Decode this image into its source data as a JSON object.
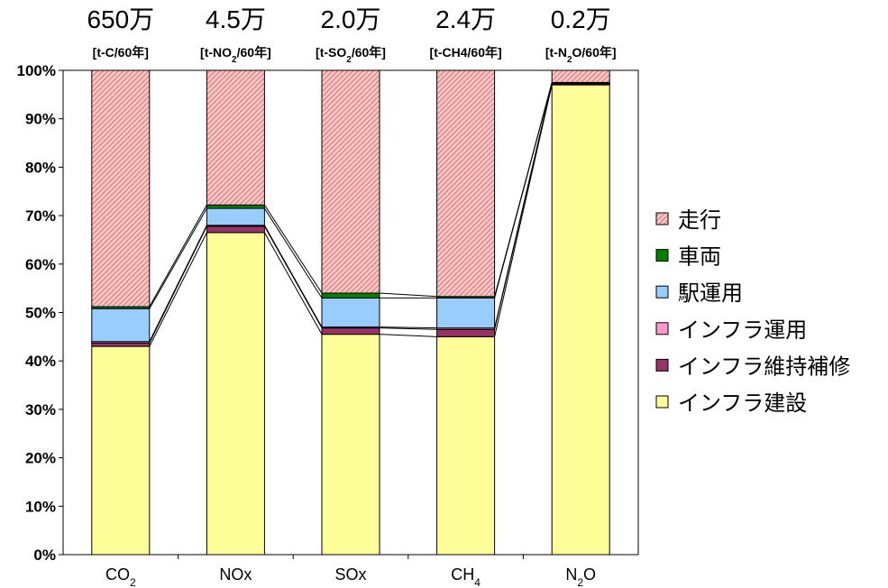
{
  "chart_data": {
    "type": "bar",
    "stacked": true,
    "normalized": true,
    "ylim": [
      0,
      100
    ],
    "yticks": [
      "0%",
      "10%",
      "20%",
      "30%",
      "40%",
      "50%",
      "60%",
      "70%",
      "80%",
      "90%",
      "100%"
    ],
    "categories": [
      {
        "base": "CO",
        "sub": "2",
        "tail": ""
      },
      {
        "base": "NOx",
        "sub": "",
        "tail": ""
      },
      {
        "base": "SOx",
        "sub": "",
        "tail": ""
      },
      {
        "base": "CH",
        "sub": "4",
        "tail": ""
      },
      {
        "base": "N",
        "sub": "2",
        "tail": "O"
      }
    ],
    "totals": [
      "650万",
      "4.5万",
      "2.0万",
      "2.4万",
      "0.2万"
    ],
    "units": [
      {
        "pre": "[t-C/60年]",
        "sub": "",
        "post": ""
      },
      {
        "pre": "[t-NO",
        "sub": "2",
        "post": "/60年]"
      },
      {
        "pre": "[t-SO",
        "sub": "2",
        "post": "/60年]"
      },
      {
        "pre": "[t-CH4/60年]",
        "sub": "",
        "post": ""
      },
      {
        "pre": "[t-N",
        "sub": "2",
        "post": "O/60年]"
      }
    ],
    "series": [
      {
        "name": "インフラ建設",
        "color": "#ffff99",
        "values": [
          43,
          66.5,
          45.5,
          45,
          97
        ]
      },
      {
        "name": "インフラ維持補修",
        "color": "#993366",
        "values": [
          0.7,
          1.3,
          1.3,
          1.5,
          0.2
        ]
      },
      {
        "name": "インフラ運用",
        "color": "#ff99cc",
        "values": [
          0.3,
          0.2,
          0.2,
          0.3,
          0.1
        ]
      },
      {
        "name": "駅運用",
        "color": "#99ccff",
        "values": [
          6.8,
          3.5,
          6.0,
          6.2,
          0.1
        ]
      },
      {
        "name": "車両",
        "color": "#008000",
        "values": [
          0.4,
          0.7,
          1.0,
          0.3,
          0.1
        ]
      },
      {
        "name": "走行",
        "color": "#ff9999",
        "pattern": "hatch",
        "values": [
          48.8,
          27.8,
          46.0,
          46.7,
          2.5
        ]
      }
    ],
    "legend": {
      "position": "right",
      "order": [
        "走行",
        "車両",
        "駅運用",
        "インフラ運用",
        "インフラ維持補修",
        "インフラ建設"
      ]
    },
    "grid": false
  }
}
